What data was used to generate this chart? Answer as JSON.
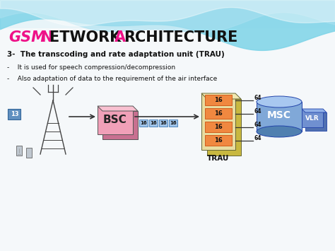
{
  "subtitle": "3-  The transcoding and rate adaptation unit (TRAU)",
  "bullet1": "-    It is used for speech compression/decompression",
  "bullet2": "-    Also adaptation of data to the requirement of the air interface",
  "trau_label": "TRAU",
  "bsc_label": "BSC",
  "msc_label": "MSC",
  "vlr_label": "VLR",
  "label_13": "13",
  "trau_values": [
    "16",
    "16",
    "16",
    "16"
  ],
  "trau_output": [
    "64",
    "64",
    "64",
    "64"
  ],
  "bsc_bottom_labels": [
    "16",
    "16",
    "16",
    "16"
  ],
  "bg_color": "#f0f4f8",
  "wave1_color": "#7dd4e8",
  "wave2_color": "#a8e0f0",
  "wave3_color": "#ffffff",
  "bsc_front_color": "#f0a0b8",
  "bsc_side_color": "#c87090",
  "bsc_top_color": "#f8c0d0",
  "trau_outer_color": "#e8dca0",
  "trau_side_color": "#c8b840",
  "trau_top_color": "#f0e8b0",
  "trau_slot_color": "#f08840",
  "trau_slot_edge": "#cc5010",
  "msc_body_color": "#80a8d8",
  "msc_top_color": "#a8c8f0",
  "msc_bot_color": "#5080b0",
  "vlr_front_color": "#7090d0",
  "vlr_side_color": "#5070b0",
  "vlr_top_color": "#90b0e8",
  "box13_color": "#6090c0",
  "bsc_label_box_color": "#a0c4e8",
  "title_gsm_color": "#ee1188",
  "title_n_color": "#ee1188",
  "title_a_color": "#ee1188",
  "title_main_color": "#111111",
  "arrow_color": "#333333",
  "text_color": "#111111"
}
